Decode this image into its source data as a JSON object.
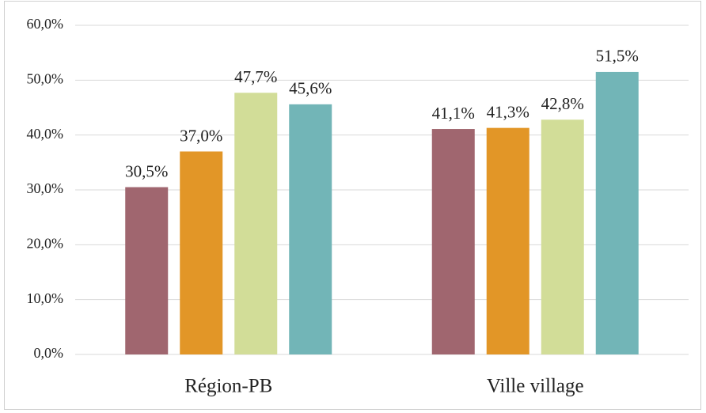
{
  "chart_data": {
    "type": "bar",
    "categories": [
      "Région-PB",
      "Ville village"
    ],
    "series": [
      {
        "color": "#a0666f",
        "values": [
          30.5,
          41.1
        ],
        "value_labels": [
          "30,5%",
          "41,1%"
        ]
      },
      {
        "color": "#e29627",
        "values": [
          37.0,
          41.3
        ],
        "value_labels": [
          "37,0%",
          "41,3%"
        ]
      },
      {
        "color": "#d2dd98",
        "values": [
          47.7,
          42.8
        ],
        "value_labels": [
          "47,7%",
          "42,8%"
        ]
      },
      {
        "color": "#72b5b7",
        "values": [
          45.6,
          51.5
        ],
        "value_labels": [
          "45,6%",
          "51,5%"
        ]
      }
    ],
    "ylim": [
      0,
      60
    ],
    "yticks": [
      {
        "value": 0,
        "label": "0,0%"
      },
      {
        "value": 10,
        "label": "10,0%"
      },
      {
        "value": 20,
        "label": "20,0%"
      },
      {
        "value": 30,
        "label": "30,0%"
      },
      {
        "value": 40,
        "label": "40,0%"
      },
      {
        "value": 50,
        "label": "50,0%"
      },
      {
        "value": 60,
        "label": "60,0%"
      }
    ],
    "grid": true
  }
}
